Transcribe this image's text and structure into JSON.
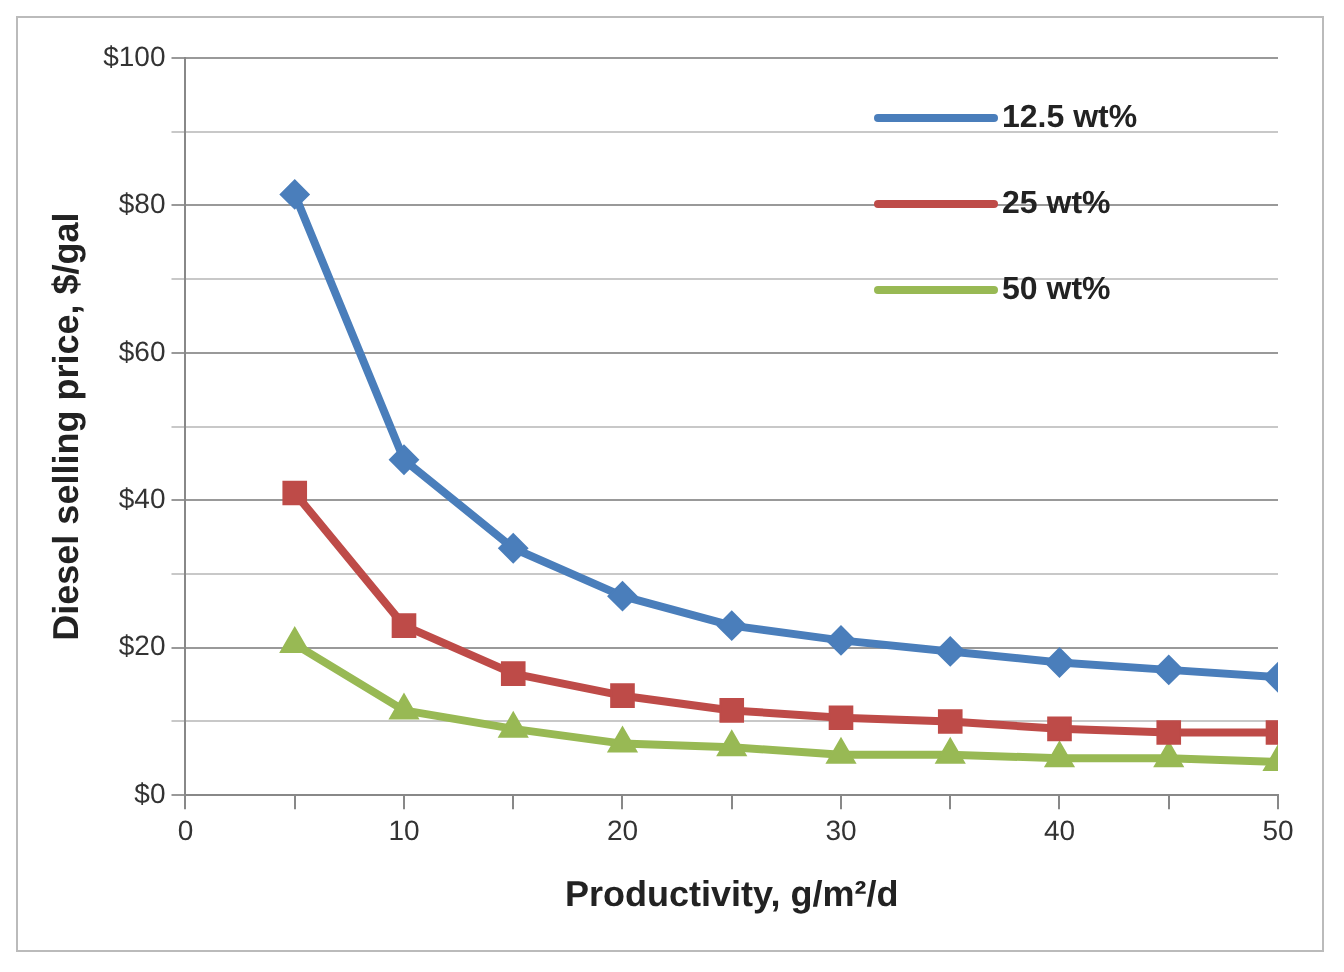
{
  "chart_data": {
    "type": "line",
    "xlabel": "Productivity, g/m²/d",
    "ylabel": "Diesel selling price, $/gal",
    "x": [
      5,
      10,
      15,
      20,
      25,
      30,
      35,
      40,
      45,
      50
    ],
    "series": [
      {
        "name": "12.5 wt%",
        "color": "#4a7ebb",
        "marker": "diamond",
        "values": [
          81.5,
          45.5,
          33.5,
          27,
          23,
          21,
          19.5,
          18,
          17,
          16
        ]
      },
      {
        "name": "25 wt%",
        "color": "#be4b48",
        "marker": "square",
        "values": [
          41,
          23,
          16.5,
          13.5,
          11.5,
          10.5,
          10,
          9,
          8.5,
          8.5
        ]
      },
      {
        "name": "50 wt%",
        "color": "#98b954",
        "marker": "triangle",
        "values": [
          20.5,
          11.5,
          9,
          7,
          6.5,
          5.5,
          5.5,
          5,
          5,
          4.5
        ]
      }
    ],
    "xlim": [
      0,
      50
    ],
    "xticks": [
      0,
      {
        "value": 5,
        "label": null
      },
      10,
      {
        "value": 15,
        "label": null
      },
      20,
      {
        "value": 25,
        "label": null
      },
      30,
      {
        "value": 35,
        "label": null
      },
      40,
      {
        "value": 45,
        "label": null
      },
      50
    ],
    "ylim": [
      0,
      100
    ],
    "yticks": [
      {
        "value": 0,
        "label": "$0"
      },
      {
        "value": 10,
        "label": null
      },
      {
        "value": 20,
        "label": "$20"
      },
      {
        "value": 30,
        "label": null
      },
      {
        "value": 40,
        "label": "$40"
      },
      {
        "value": 50,
        "label": null
      },
      {
        "value": 60,
        "label": "$60"
      },
      {
        "value": 70,
        "label": null
      },
      {
        "value": 80,
        "label": "$80"
      },
      {
        "value": 90,
        "label": null
      },
      {
        "value": 100,
        "label": "$100"
      }
    ],
    "grid": "y",
    "legend": "top right",
    "line_style": "solid"
  }
}
